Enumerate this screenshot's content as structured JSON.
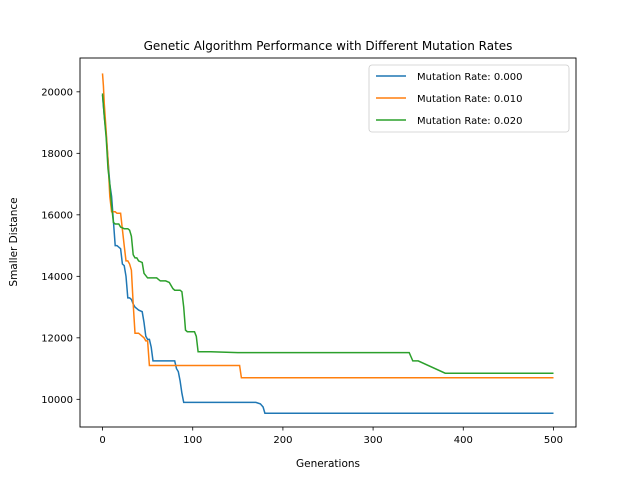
{
  "chart_data": {
    "type": "line",
    "title": "Genetic Algorithm Performance with Different Mutation Rates",
    "xlabel": "Generations",
    "ylabel": "Smaller Distance",
    "xlim": [
      -25,
      525
    ],
    "ylim": [
      9100,
      21100
    ],
    "xticks": [
      0,
      100,
      200,
      300,
      400,
      500
    ],
    "xtick_labels": [
      "0",
      "100",
      "200",
      "300",
      "400",
      "500"
    ],
    "yticks": [
      10000,
      12000,
      14000,
      16000,
      18000,
      20000
    ],
    "ytick_labels": [
      "10000",
      "12000",
      "14000",
      "16000",
      "18000",
      "20000"
    ],
    "grid": false,
    "legend_position": "upper-right",
    "series": [
      {
        "name": "Mutation Rate: 0.000",
        "color": "#1f77b4",
        "x": [
          0,
          2,
          4,
          6,
          8,
          10,
          12,
          14,
          16,
          20,
          22,
          24,
          26,
          28,
          30,
          32,
          34,
          36,
          38,
          40,
          44,
          46,
          48,
          50,
          52,
          54,
          56,
          60,
          70,
          80,
          82,
          84,
          86,
          88,
          90,
          92,
          95,
          100,
          110,
          120,
          150,
          170,
          175,
          178,
          180,
          190,
          200,
          300,
          400,
          500
        ],
        "y": [
          19900,
          19200,
          18600,
          17800,
          17000,
          16600,
          15800,
          15000,
          15000,
          14900,
          14400,
          14350,
          14000,
          13300,
          13300,
          13250,
          13100,
          13000,
          12950,
          12900,
          12850,
          12500,
          12050,
          11950,
          11950,
          11700,
          11250,
          11250,
          11250,
          11250,
          11000,
          10900,
          10600,
          10200,
          9900,
          9900,
          9900,
          9900,
          9900,
          9900,
          9900,
          9900,
          9850,
          9750,
          9550,
          9550,
          9550,
          9550,
          9550,
          9550
        ]
      },
      {
        "name": "Mutation Rate: 0.010",
        "color": "#ff7f0e",
        "x": [
          0,
          1,
          2,
          4,
          6,
          8,
          10,
          12,
          14,
          16,
          20,
          24,
          26,
          28,
          30,
          32,
          34,
          36,
          38,
          40,
          46,
          48,
          50,
          52,
          60,
          80,
          100,
          120,
          140,
          152,
          154,
          160,
          200,
          300,
          400,
          500
        ],
        "y": [
          20600,
          20200,
          19600,
          18700,
          17800,
          16600,
          16100,
          16100,
          16100,
          16050,
          16050,
          15000,
          14500,
          14500,
          14400,
          14200,
          13100,
          12150,
          12150,
          12150,
          12000,
          11900,
          11900,
          11100,
          11100,
          11100,
          11100,
          11100,
          11100,
          11100,
          10700,
          10700,
          10700,
          10700,
          10700,
          10700
        ]
      },
      {
        "name": "Mutation Rate: 0.020",
        "color": "#2ca02c",
        "x": [
          0,
          2,
          4,
          6,
          8,
          10,
          12,
          14,
          16,
          18,
          20,
          24,
          28,
          30,
          32,
          34,
          36,
          38,
          40,
          44,
          46,
          50,
          56,
          60,
          62,
          64,
          68,
          70,
          74,
          78,
          80,
          82,
          86,
          88,
          90,
          92,
          94,
          96,
          100,
          102,
          104,
          106,
          110,
          120,
          150,
          200,
          250,
          300,
          340,
          344,
          350,
          380,
          400,
          450,
          500
        ],
        "y": [
          19950,
          19200,
          18500,
          17500,
          17000,
          16300,
          15750,
          15700,
          15700,
          15700,
          15600,
          15550,
          15550,
          15500,
          15300,
          14700,
          14600,
          14600,
          14500,
          14450,
          14100,
          13950,
          13950,
          13950,
          13900,
          13850,
          13850,
          13850,
          13800,
          13600,
          13550,
          13550,
          13550,
          13500,
          13000,
          12250,
          12200,
          12200,
          12200,
          12200,
          12050,
          11550,
          11550,
          11550,
          11520,
          11520,
          11520,
          11520,
          11520,
          11250,
          11250,
          10850,
          10850,
          10850,
          10850
        ]
      }
    ]
  }
}
